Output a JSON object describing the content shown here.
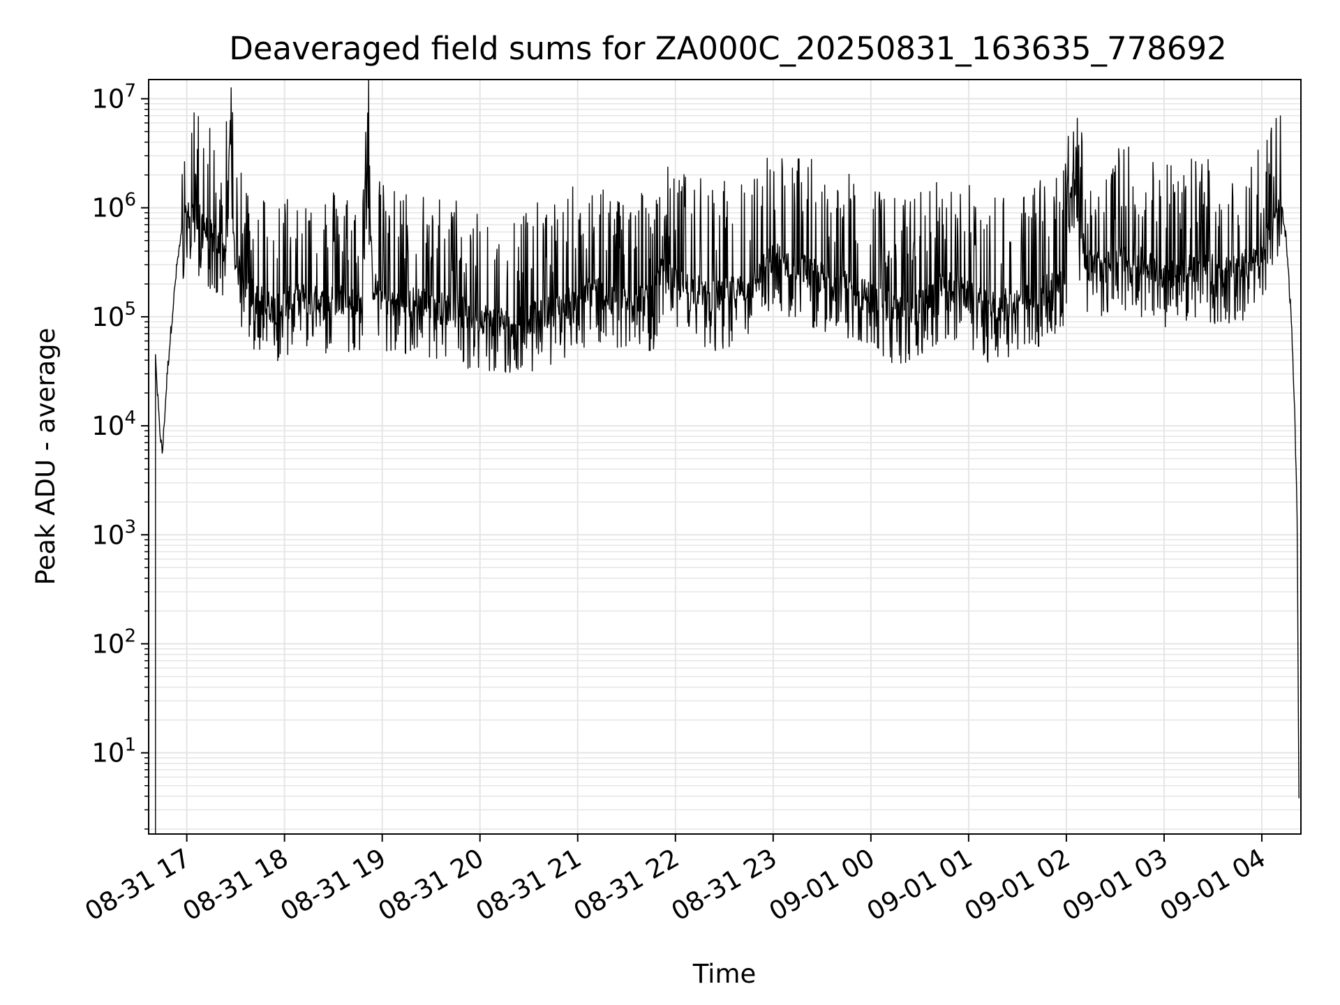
{
  "chart_data": {
    "type": "line",
    "title": "Deaveraged field sums for ZA000C_20250831_163635_778692",
    "xlabel": "Time",
    "ylabel": "Peak ADU - average",
    "yscale": "log",
    "ylim": [
      1.8,
      15000000
    ],
    "xlim_hours": [
      16.61,
      28.4
    ],
    "grid": true,
    "grid_color": "#e5e5e5",
    "line_color": "#000000",
    "x_ticks": [
      {
        "hour": 17,
        "label": "08-31 17"
      },
      {
        "hour": 18,
        "label": "08-31 18"
      },
      {
        "hour": 19,
        "label": "08-31 19"
      },
      {
        "hour": 20,
        "label": "08-31 20"
      },
      {
        "hour": 21,
        "label": "08-31 21"
      },
      {
        "hour": 22,
        "label": "08-31 22"
      },
      {
        "hour": 23,
        "label": "08-31 23"
      },
      {
        "hour": 24,
        "label": "09-01 00"
      },
      {
        "hour": 25,
        "label": "09-01 01"
      },
      {
        "hour": 26,
        "label": "09-01 02"
      },
      {
        "hour": 27,
        "label": "09-01 03"
      },
      {
        "hour": 28,
        "label": "09-01 04"
      }
    ],
    "y_ticks": [
      {
        "value": 10,
        "base": "10",
        "exp": "1"
      },
      {
        "value": 100,
        "base": "10",
        "exp": "2"
      },
      {
        "value": 1000,
        "base": "10",
        "exp": "3"
      },
      {
        "value": 10000,
        "base": "10",
        "exp": "4"
      },
      {
        "value": 100000,
        "base": "10",
        "exp": "5"
      },
      {
        "value": 1000000,
        "base": "10",
        "exp": "6"
      },
      {
        "value": 10000000,
        "base": "10",
        "exp": "7"
      }
    ],
    "series": [
      {
        "name": "deaveraged field sum",
        "x": [
          16.7,
          16.72,
          16.75,
          16.8,
          16.85,
          16.9,
          16.95,
          17.0,
          17.05,
          17.1,
          17.15,
          17.2,
          17.3,
          17.4,
          17.45,
          17.47,
          17.5,
          17.6,
          17.7,
          17.8,
          17.9,
          18.0,
          18.2,
          18.4,
          18.6,
          18.8,
          18.85,
          18.9,
          19.0,
          19.2,
          19.4,
          19.6,
          19.8,
          20.0,
          20.2,
          20.4,
          20.6,
          20.8,
          21.0,
          21.2,
          21.4,
          21.6,
          21.75,
          21.85,
          22.0,
          22.2,
          22.4,
          22.6,
          22.8,
          23.0,
          23.2,
          23.4,
          23.6,
          23.8,
          24.0,
          24.2,
          24.4,
          24.6,
          24.8,
          25.0,
          25.2,
          25.4,
          25.6,
          25.8,
          26.0,
          26.05,
          26.2,
          26.4,
          26.6,
          26.8,
          27.0,
          27.2,
          27.4,
          27.6,
          27.8,
          28.0,
          28.05,
          28.1,
          28.15,
          28.2,
          28.25,
          28.3,
          28.33,
          28.36,
          28.38
        ],
        "y": [
          20000,
          10000,
          5500,
          30000,
          100000,
          300000,
          600000,
          800000,
          900000,
          700000,
          800000,
          600000,
          500000,
          400000,
          7500000,
          600000,
          300000,
          200000,
          150000,
          130000,
          120000,
          130000,
          150000,
          130000,
          150000,
          120000,
          3100000,
          200000,
          150000,
          130000,
          140000,
          120000,
          110000,
          100000,
          90000,
          95000,
          100000,
          120000,
          150000,
          180000,
          120000,
          160000,
          130000,
          250000,
          200000,
          180000,
          150000,
          170000,
          200000,
          350000,
          300000,
          250000,
          200000,
          180000,
          150000,
          120000,
          110000,
          150000,
          200000,
          150000,
          120000,
          130000,
          140000,
          180000,
          250000,
          2100000,
          300000,
          280000,
          350000,
          300000,
          250000,
          280000,
          300000,
          250000,
          280000,
          400000,
          500000,
          600000,
          800000,
          1000000,
          500000,
          100000,
          20000,
          2000,
          3.8
        ]
      }
    ]
  }
}
